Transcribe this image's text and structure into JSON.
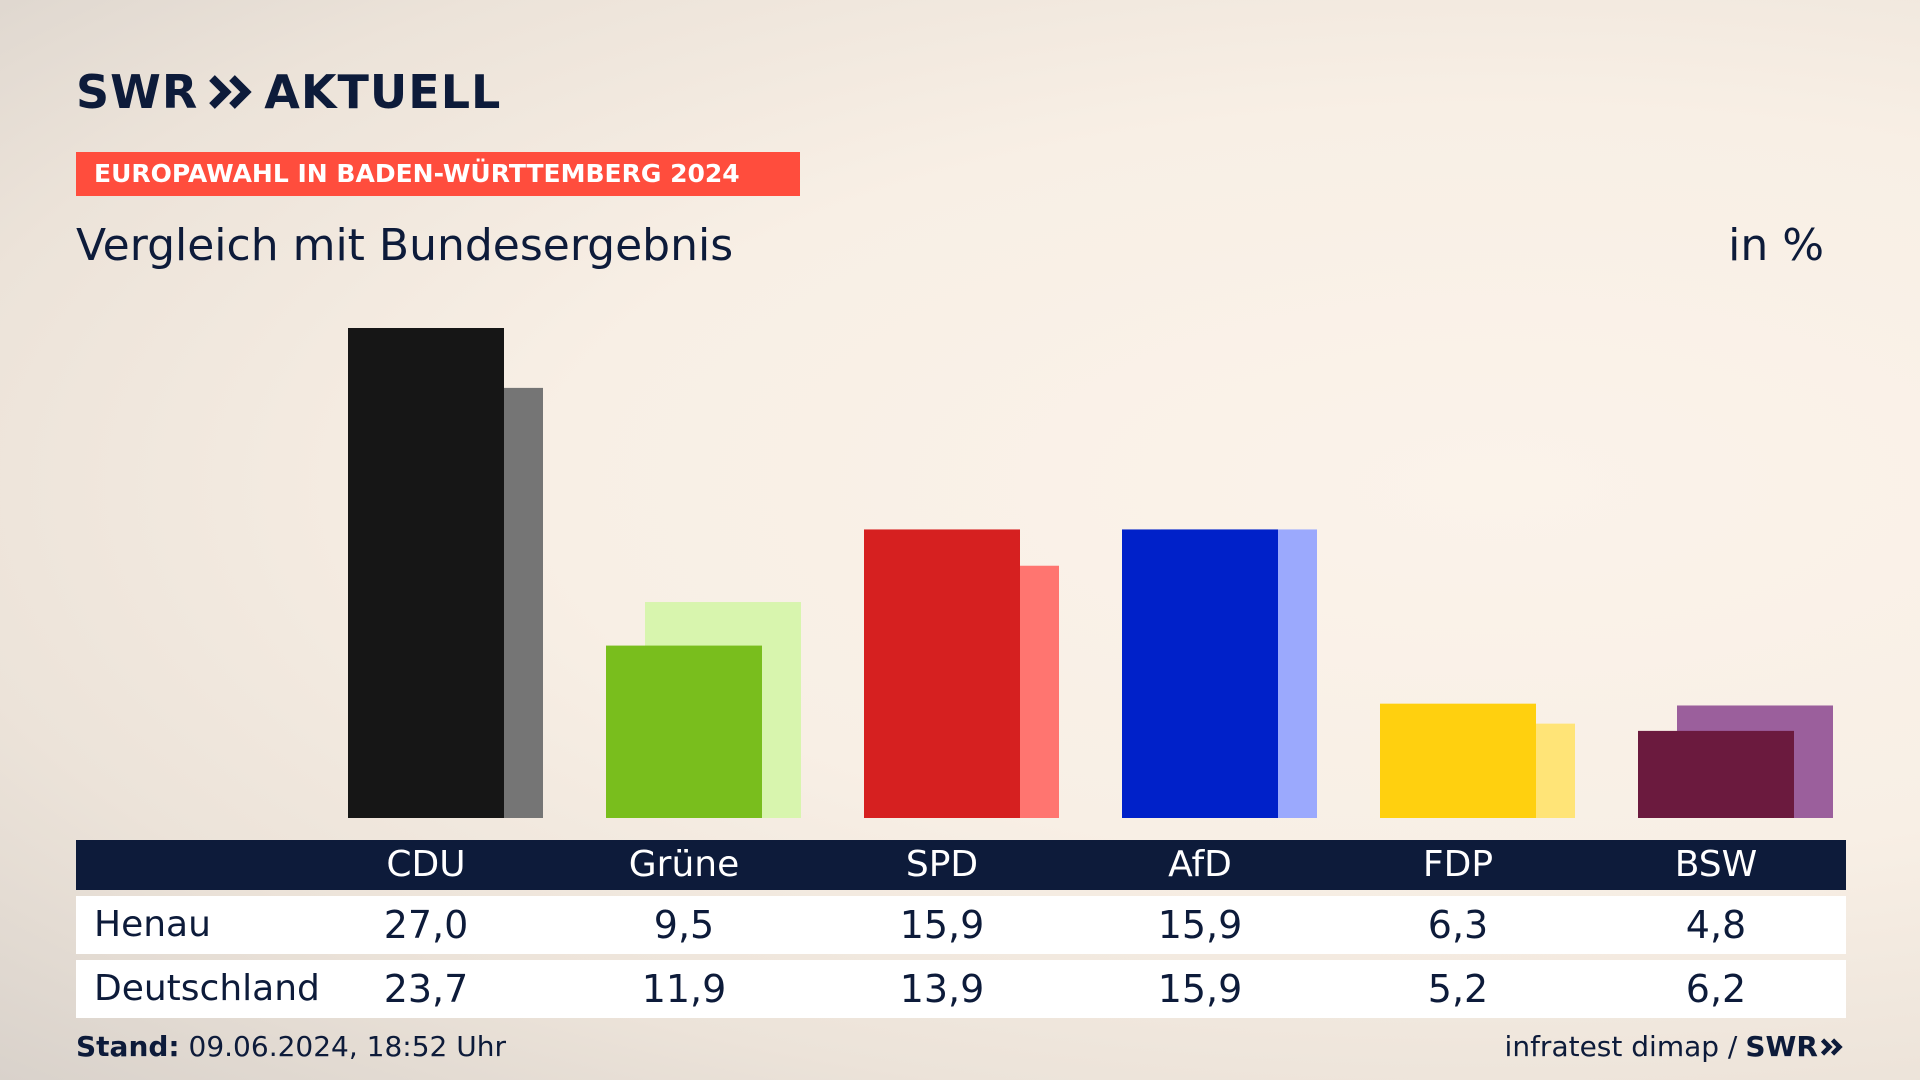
{
  "brand": {
    "logo_text": "SWR",
    "logo_suffix": "AKTUELL",
    "chevron_icon": "double-chevron-icon"
  },
  "tag": "EUROPAWAHL IN BADEN-WÜRTTEMBERG 2024",
  "subtitle": "Vergleich mit Bundesergebnis",
  "unit": "in %",
  "chart_data": {
    "type": "bar",
    "categories": [
      "CDU",
      "Grüne",
      "SPD",
      "AfD",
      "FDP",
      "BSW"
    ],
    "series": [
      {
        "name": "Henau",
        "values": [
          27.0,
          9.5,
          15.9,
          15.9,
          6.3,
          4.8
        ],
        "colors": [
          "#161616",
          "#79be1d",
          "#d62020",
          "#0021c9",
          "#ffd00f",
          "#6b1a3e"
        ]
      },
      {
        "name": "Deutschland",
        "values": [
          23.7,
          11.9,
          13.9,
          15.9,
          5.2,
          6.2
        ],
        "colors": [
          "#757575",
          "#d8f5ae",
          "#ff7570",
          "#9ba9fd",
          "#ffe477",
          "#9b5f9c"
        ]
      }
    ],
    "value_labels": {
      "Henau": [
        "27,0",
        "9,5",
        "15,9",
        "15,9",
        "6,3",
        "4,8"
      ],
      "Deutschland": [
        "23,7",
        "11,9",
        "13,9",
        "15,9",
        "5,2",
        "6,2"
      ]
    },
    "ylim": [
      0,
      27.0
    ]
  },
  "footer": {
    "stand_label": "Stand:",
    "stand_value": "09.06.2024, 18:52 Uhr",
    "source": "infratest dimap /",
    "source_brand": "SWR"
  }
}
